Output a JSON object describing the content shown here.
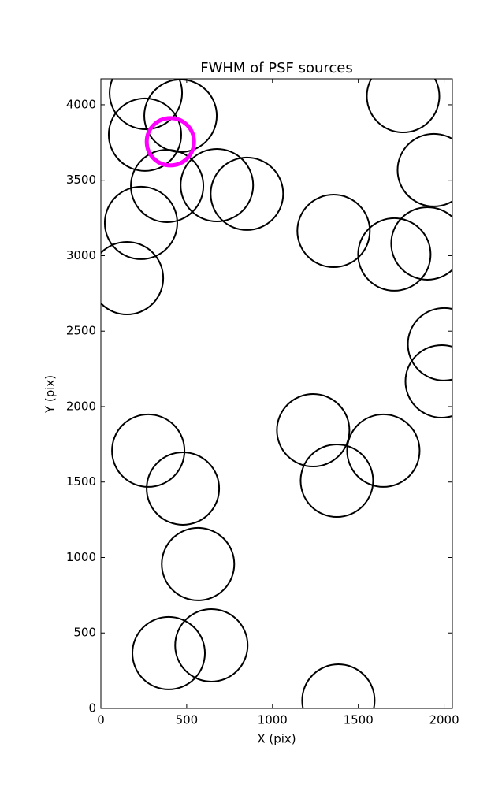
{
  "chart_data": {
    "type": "scatter",
    "title": "FWHM of PSF sources",
    "xlabel": "X (pix)",
    "ylabel": "Y (pix)",
    "xlim": [
      0,
      2048
    ],
    "ylim": [
      0,
      4172
    ],
    "xticks": [
      0,
      500,
      1000,
      1500,
      2000
    ],
    "yticks": [
      0,
      500,
      1000,
      1500,
      2000,
      2500,
      3000,
      3500,
      4000
    ],
    "series": [
      {
        "color": "#000000",
        "x": [
          262,
          464,
          257,
          676,
          386,
          851,
          234,
          152,
          1761,
          1940,
          1356,
          1710,
          1903,
          2000,
          1986,
          1237,
          1646,
          1375,
          276,
          478,
          566,
          395,
          644,
          1384
        ],
        "values": [
          4078,
          3927,
          3802,
          3467,
          3462,
          3410,
          3217,
          2851,
          4057,
          3567,
          3164,
          3008,
          3081,
          2413,
          2167,
          1843,
          1708,
          1509,
          1708,
          1457,
          956,
          366,
          418,
          52
        ]
      },
      {
        "color": "#ff00ff",
        "x": [
          405
        ],
        "values": [
          3755
        ]
      }
    ]
  }
}
